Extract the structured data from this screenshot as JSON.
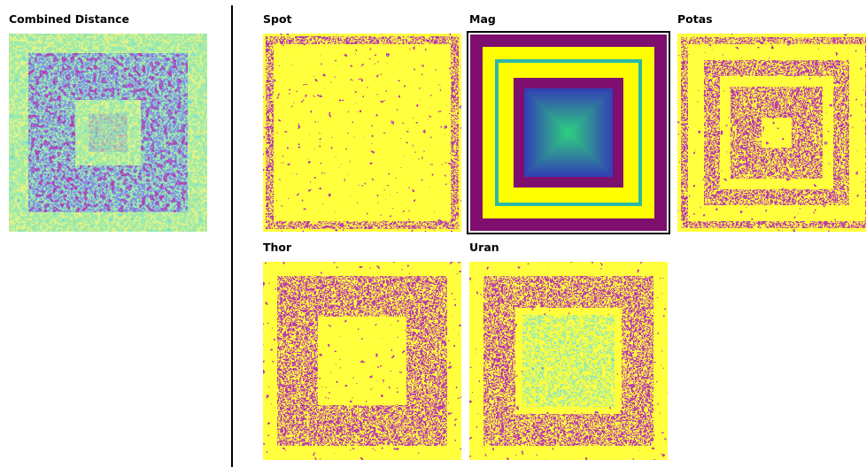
{
  "panels": [
    {
      "label": "Combined Distance"
    },
    {
      "label": "Spot"
    },
    {
      "label": "Mag"
    },
    {
      "label": "Potas"
    },
    {
      "label": "Thor"
    },
    {
      "label": "Uran"
    }
  ]
}
